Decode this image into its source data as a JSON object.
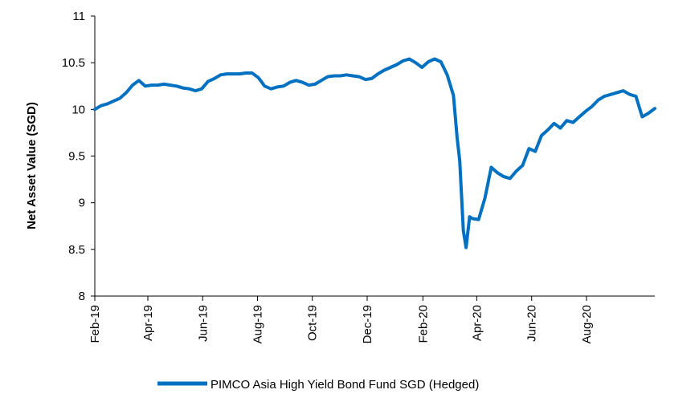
{
  "chart_data": {
    "type": "line",
    "title": "",
    "xlabel": "",
    "ylabel": "Net Asset Value (SGD)",
    "ylim": [
      8,
      11
    ],
    "yticks": [
      "8",
      "8.5",
      "9",
      "9.5",
      "10",
      "10.5",
      "11"
    ],
    "xticks": [
      "Feb-19",
      "Apr-19",
      "Jun-19",
      "Aug-19",
      "Oct-19",
      "Dec-19",
      "Feb-20",
      "Apr-20",
      "Jun-20",
      "Aug-20"
    ],
    "grid": false,
    "legend": "bottom",
    "series": [
      {
        "name": "PIMCO Asia High Yield Bond Fund SGD (Hedged)",
        "color": "#0070C0",
        "points": [
          [
            "2019-02-01",
            10.0
          ],
          [
            "2019-02-08",
            10.04
          ],
          [
            "2019-02-15",
            10.06
          ],
          [
            "2019-02-22",
            10.09
          ],
          [
            "2019-03-01",
            10.12
          ],
          [
            "2019-03-08",
            10.18
          ],
          [
            "2019-03-15",
            10.26
          ],
          [
            "2019-03-22",
            10.31
          ],
          [
            "2019-03-29",
            10.25
          ],
          [
            "2019-04-05",
            10.26
          ],
          [
            "2019-04-12",
            10.26
          ],
          [
            "2019-04-19",
            10.27
          ],
          [
            "2019-04-26",
            10.26
          ],
          [
            "2019-05-03",
            10.25
          ],
          [
            "2019-05-10",
            10.23
          ],
          [
            "2019-05-17",
            10.22
          ],
          [
            "2019-05-24",
            10.2
          ],
          [
            "2019-05-31",
            10.22
          ],
          [
            "2019-06-07",
            10.3
          ],
          [
            "2019-06-14",
            10.33
          ],
          [
            "2019-06-21",
            10.37
          ],
          [
            "2019-06-28",
            10.38
          ],
          [
            "2019-07-05",
            10.38
          ],
          [
            "2019-07-12",
            10.38
          ],
          [
            "2019-07-19",
            10.39
          ],
          [
            "2019-07-26",
            10.39
          ],
          [
            "2019-08-02",
            10.34
          ],
          [
            "2019-08-09",
            10.25
          ],
          [
            "2019-08-16",
            10.22
          ],
          [
            "2019-08-23",
            10.24
          ],
          [
            "2019-08-30",
            10.25
          ],
          [
            "2019-09-06",
            10.29
          ],
          [
            "2019-09-13",
            10.31
          ],
          [
            "2019-09-20",
            10.29
          ],
          [
            "2019-09-27",
            10.26
          ],
          [
            "2019-10-04",
            10.27
          ],
          [
            "2019-10-11",
            10.31
          ],
          [
            "2019-10-18",
            10.35
          ],
          [
            "2019-10-25",
            10.36
          ],
          [
            "2019-11-01",
            10.36
          ],
          [
            "2019-11-08",
            10.37
          ],
          [
            "2019-11-15",
            10.36
          ],
          [
            "2019-11-22",
            10.35
          ],
          [
            "2019-11-29",
            10.32
          ],
          [
            "2019-12-06",
            10.33
          ],
          [
            "2019-12-13",
            10.38
          ],
          [
            "2019-12-20",
            10.42
          ],
          [
            "2019-12-27",
            10.45
          ],
          [
            "2020-01-03",
            10.48
          ],
          [
            "2020-01-10",
            10.52
          ],
          [
            "2020-01-17",
            10.54
          ],
          [
            "2020-01-24",
            10.5
          ],
          [
            "2020-01-31",
            10.45
          ],
          [
            "2020-02-07",
            10.51
          ],
          [
            "2020-02-14",
            10.54
          ],
          [
            "2020-02-21",
            10.51
          ],
          [
            "2020-02-28",
            10.37
          ],
          [
            "2020-03-06",
            10.15
          ],
          [
            "2020-03-10",
            9.7
          ],
          [
            "2020-03-13",
            9.45
          ],
          [
            "2020-03-17",
            8.7
          ],
          [
            "2020-03-20",
            8.52
          ],
          [
            "2020-03-24",
            8.85
          ],
          [
            "2020-03-27",
            8.83
          ],
          [
            "2020-04-03",
            8.82
          ],
          [
            "2020-04-10",
            9.05
          ],
          [
            "2020-04-17",
            9.38
          ],
          [
            "2020-04-24",
            9.32
          ],
          [
            "2020-05-01",
            9.28
          ],
          [
            "2020-05-08",
            9.26
          ],
          [
            "2020-05-15",
            9.34
          ],
          [
            "2020-05-22",
            9.4
          ],
          [
            "2020-05-29",
            9.58
          ],
          [
            "2020-06-05",
            9.55
          ],
          [
            "2020-06-12",
            9.72
          ],
          [
            "2020-06-19",
            9.78
          ],
          [
            "2020-06-26",
            9.85
          ],
          [
            "2020-07-03",
            9.8
          ],
          [
            "2020-07-10",
            9.88
          ],
          [
            "2020-07-17",
            9.86
          ],
          [
            "2020-07-24",
            9.92
          ],
          [
            "2020-07-31",
            9.98
          ],
          [
            "2020-08-07",
            10.03
          ],
          [
            "2020-08-14",
            10.1
          ],
          [
            "2020-08-21",
            10.14
          ],
          [
            "2020-08-28",
            10.16
          ],
          [
            "2020-09-04",
            10.18
          ],
          [
            "2020-09-11",
            10.2
          ],
          [
            "2020-09-18",
            10.16
          ],
          [
            "2020-09-25",
            10.14
          ],
          [
            "2020-10-02",
            9.92
          ],
          [
            "2020-10-09",
            9.96
          ],
          [
            "2020-10-16",
            10.01
          ]
        ]
      }
    ]
  }
}
